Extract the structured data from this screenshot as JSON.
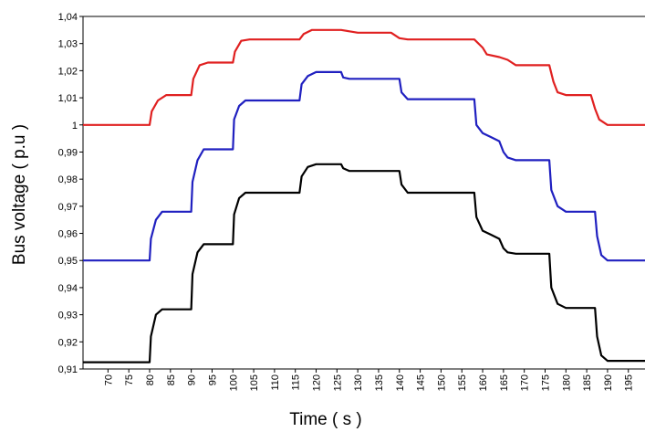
{
  "chart_data": {
    "type": "line",
    "title": "",
    "xlabel": "Time ( s )",
    "ylabel": "Bus voltage ( p.u )",
    "xlim": [
      64,
      199
    ],
    "ylim": [
      0.91,
      1.04
    ],
    "grid": false,
    "legend": "none",
    "x_ticks": [
      70,
      75,
      80,
      85,
      90,
      95,
      100,
      105,
      110,
      115,
      120,
      125,
      130,
      135,
      140,
      145,
      150,
      155,
      160,
      165,
      170,
      175,
      180,
      185,
      190,
      195
    ],
    "y_ticks": [
      "0,91",
      "0,92",
      "0,93",
      "0,94",
      "0,95",
      "0,96",
      "0,97",
      "0,98",
      "0,99",
      "1",
      "1,01",
      "1,02",
      "1,03",
      "1,04"
    ],
    "series": [
      {
        "color": "#e02020",
        "points": [
          [
            64,
            1.0
          ],
          [
            80,
            1.0
          ],
          [
            80.5,
            1.005
          ],
          [
            82,
            1.009
          ],
          [
            84,
            1.011
          ],
          [
            90,
            1.011
          ],
          [
            90.5,
            1.017
          ],
          [
            92,
            1.022
          ],
          [
            94,
            1.023
          ],
          [
            100,
            1.023
          ],
          [
            100.5,
            1.027
          ],
          [
            102,
            1.031
          ],
          [
            104,
            1.0315
          ],
          [
            116,
            1.0315
          ],
          [
            117,
            1.0335
          ],
          [
            119,
            1.035
          ],
          [
            126,
            1.035
          ],
          [
            128,
            1.0345
          ],
          [
            130,
            1.034
          ],
          [
            134,
            1.034
          ],
          [
            138,
            1.034
          ],
          [
            140,
            1.032
          ],
          [
            142,
            1.0315
          ],
          [
            158,
            1.0315
          ],
          [
            160,
            1.0285
          ],
          [
            161,
            1.026
          ],
          [
            164,
            1.025
          ],
          [
            166,
            1.024
          ],
          [
            168,
            1.022
          ],
          [
            176,
            1.022
          ],
          [
            177,
            1.016
          ],
          [
            178,
            1.012
          ],
          [
            180,
            1.011
          ],
          [
            186,
            1.011
          ],
          [
            187,
            1.006
          ],
          [
            188,
            1.002
          ],
          [
            190,
            1.0
          ],
          [
            199,
            1.0
          ]
        ]
      },
      {
        "color": "#2020c0",
        "points": [
          [
            64,
            0.95
          ],
          [
            80,
            0.95
          ],
          [
            80.3,
            0.958
          ],
          [
            81.5,
            0.965
          ],
          [
            83,
            0.968
          ],
          [
            90,
            0.968
          ],
          [
            90.3,
            0.979
          ],
          [
            91.5,
            0.987
          ],
          [
            93,
            0.991
          ],
          [
            100,
            0.991
          ],
          [
            100.3,
            1.002
          ],
          [
            101.5,
            1.007
          ],
          [
            103,
            1.009
          ],
          [
            116,
            1.009
          ],
          [
            116.5,
            1.015
          ],
          [
            118,
            1.018
          ],
          [
            120,
            1.0195
          ],
          [
            126,
            1.0195
          ],
          [
            126.5,
            1.0175
          ],
          [
            128,
            1.017
          ],
          [
            140,
            1.017
          ],
          [
            140.5,
            1.012
          ],
          [
            142,
            1.0095
          ],
          [
            158,
            1.0095
          ],
          [
            158.5,
            1.0
          ],
          [
            160,
            0.997
          ],
          [
            162,
            0.9955
          ],
          [
            164,
            0.994
          ],
          [
            165,
            0.99
          ],
          [
            166,
            0.988
          ],
          [
            168,
            0.987
          ],
          [
            176,
            0.987
          ],
          [
            176.5,
            0.976
          ],
          [
            178,
            0.97
          ],
          [
            180,
            0.968
          ],
          [
            187,
            0.968
          ],
          [
            187.5,
            0.959
          ],
          [
            188.5,
            0.952
          ],
          [
            190,
            0.95
          ],
          [
            199,
            0.95
          ]
        ]
      },
      {
        "color": "#000000",
        "points": [
          [
            64,
            0.9125
          ],
          [
            80,
            0.9125
          ],
          [
            80.3,
            0.922
          ],
          [
            81.5,
            0.93
          ],
          [
            83,
            0.932
          ],
          [
            90,
            0.932
          ],
          [
            90.3,
            0.945
          ],
          [
            91.5,
            0.953
          ],
          [
            93,
            0.956
          ],
          [
            100,
            0.956
          ],
          [
            100.3,
            0.967
          ],
          [
            101.5,
            0.973
          ],
          [
            103,
            0.975
          ],
          [
            116,
            0.975
          ],
          [
            116.5,
            0.981
          ],
          [
            118,
            0.9845
          ],
          [
            120,
            0.9855
          ],
          [
            126,
            0.9855
          ],
          [
            126.5,
            0.984
          ],
          [
            128,
            0.983
          ],
          [
            140,
            0.983
          ],
          [
            140.5,
            0.978
          ],
          [
            142,
            0.975
          ],
          [
            158,
            0.975
          ],
          [
            158.5,
            0.966
          ],
          [
            160,
            0.961
          ],
          [
            162,
            0.9595
          ],
          [
            164,
            0.958
          ],
          [
            165,
            0.9545
          ],
          [
            166,
            0.953
          ],
          [
            168,
            0.9525
          ],
          [
            176,
            0.9525
          ],
          [
            176.5,
            0.94
          ],
          [
            178,
            0.934
          ],
          [
            180,
            0.9325
          ],
          [
            187,
            0.9325
          ],
          [
            187.5,
            0.922
          ],
          [
            188.5,
            0.915
          ],
          [
            190,
            0.913
          ],
          [
            199,
            0.913
          ]
        ]
      }
    ]
  }
}
